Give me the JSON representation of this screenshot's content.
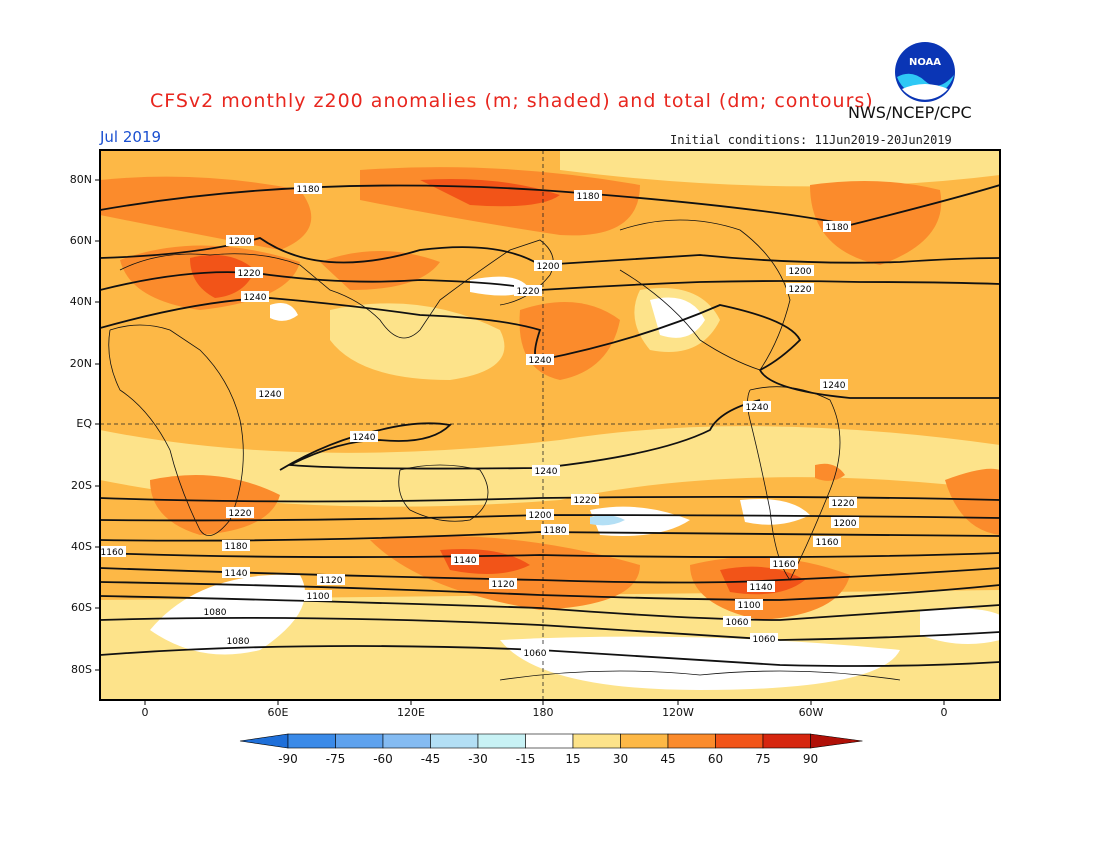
{
  "title": "CFSv2 monthly z200 anomalies (m; shaded) and total (dm; contours)",
  "valid_month": "Jul 2019",
  "initial_conditions": "Initial conditions: 11Jun2019-20Jun2019",
  "agency": "NWS/NCEP/CPC",
  "logo": {
    "text": "NOAA",
    "icon": "noaa-logo"
  },
  "map": {
    "lat_labels": [
      "80N",
      "60N",
      "40N",
      "20N",
      "EQ",
      "20S",
      "40S",
      "60S",
      "80S"
    ],
    "lon_labels": [
      "0",
      "60E",
      "120E",
      "180",
      "120W",
      "60W",
      "0"
    ],
    "contour_labels": [
      "1180",
      "1180",
      "1180",
      "1200",
      "1220",
      "1240",
      "1200",
      "1220",
      "1200",
      "1220",
      "1240",
      "1240",
      "1240",
      "1240",
      "1240",
      "1240",
      "1220",
      "1220",
      "1220",
      "1200",
      "1200",
      "1180",
      "1160",
      "1180",
      "1160",
      "1140",
      "1160",
      "1140",
      "1120",
      "1140",
      "1100",
      "1120",
      "1080",
      "1100",
      "1060",
      "1080",
      "1060",
      "1060"
    ]
  },
  "colorbar": {
    "labels": [
      "-90",
      "-75",
      "-60",
      "-45",
      "-30",
      "-15",
      "15",
      "30",
      "45",
      "60",
      "75",
      "90"
    ],
    "colors": [
      "#1e6fd9",
      "#3a8ae8",
      "#5ea2ee",
      "#84bbf2",
      "#b3dff5",
      "#c8f2f5",
      "#ffffff",
      "#fde38a",
      "#fdb846",
      "#fb8b2c",
      "#f25418",
      "#d6260f",
      "#b01007"
    ]
  }
}
